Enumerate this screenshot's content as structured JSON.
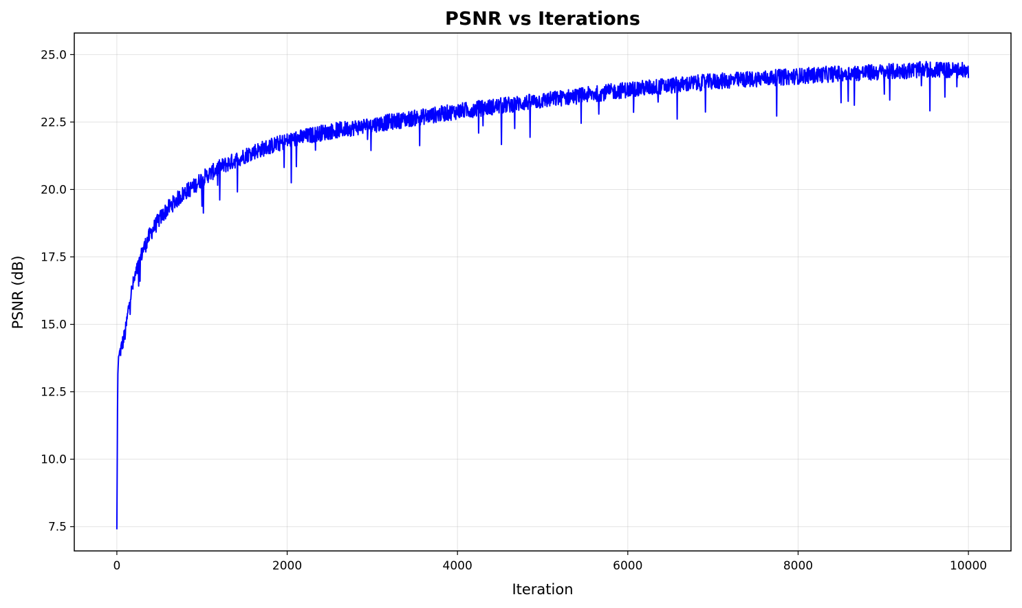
{
  "chart_data": {
    "type": "line",
    "title": "PSNR vs Iterations",
    "xlabel": "Iteration",
    "ylabel": "PSNR (dB)",
    "xlim": [
      -500,
      10500
    ],
    "ylim": [
      6.6,
      25.8
    ],
    "xticks": [
      0,
      2000,
      4000,
      6000,
      8000,
      10000
    ],
    "xtick_labels": [
      "0",
      "2000",
      "4000",
      "6000",
      "8000",
      "10000"
    ],
    "yticks": [
      7.5,
      10.0,
      12.5,
      15.0,
      17.5,
      20.0,
      22.5,
      25.0
    ],
    "ytick_labels": [
      "7.5",
      "10.0",
      "12.5",
      "15.0",
      "17.5",
      "20.0",
      "22.5",
      "25.0"
    ],
    "grid": true,
    "series": [
      {
        "color": "#0000ff",
        "x": [
          0,
          10,
          20,
          50,
          100,
          150,
          200,
          300,
          400,
          500,
          600,
          700,
          800,
          900,
          1000,
          1200,
          1400,
          1600,
          1800,
          2000,
          2200,
          2400,
          2600,
          2800,
          3000,
          3200,
          3400,
          3600,
          3800,
          4000,
          4500,
          5000,
          5500,
          6000,
          6500,
          7000,
          7500,
          8000,
          8500,
          9000,
          9500,
          10000
        ],
        "y": [
          7.4,
          13.0,
          13.8,
          14.1,
          14.7,
          15.9,
          16.6,
          17.7,
          18.4,
          18.9,
          19.3,
          19.6,
          19.9,
          20.1,
          20.4,
          20.8,
          21.1,
          21.4,
          21.6,
          21.8,
          21.95,
          22.1,
          22.2,
          22.3,
          22.4,
          22.5,
          22.6,
          22.7,
          22.8,
          22.9,
          23.1,
          23.3,
          23.5,
          23.7,
          23.85,
          24.0,
          24.1,
          24.2,
          24.3,
          24.35,
          24.45,
          24.4
        ],
        "noise_amplitude": 0.3
      }
    ]
  }
}
